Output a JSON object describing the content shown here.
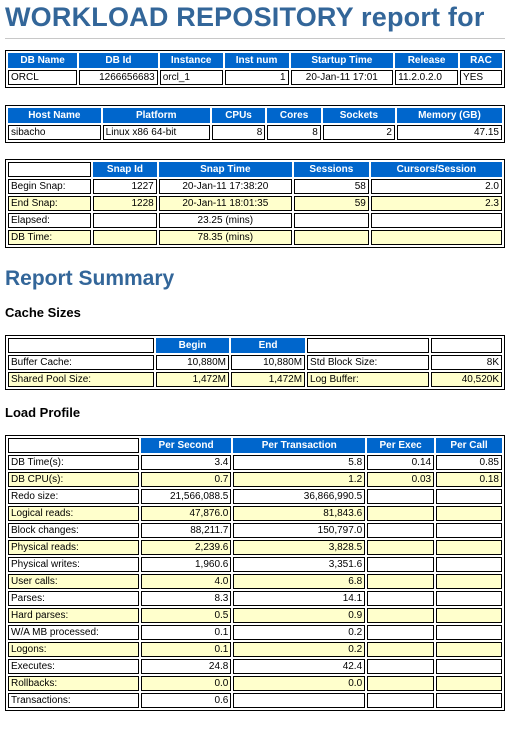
{
  "title": "WORKLOAD REPOSITORY report for",
  "db_table": {
    "headers": [
      "DB Name",
      "DB Id",
      "Instance",
      "Inst num",
      "Startup Time",
      "Release",
      "RAC"
    ],
    "row": [
      "ORCL",
      "1266656683",
      "orcl_1",
      "1",
      "20-Jan-11 17:01",
      "11.2.0.2.0",
      "YES"
    ]
  },
  "host_table": {
    "headers": [
      "Host Name",
      "Platform",
      "CPUs",
      "Cores",
      "Sockets",
      "Memory (GB)"
    ],
    "row": [
      "sibacho",
      "Linux x86 64-bit",
      "8",
      "8",
      "2",
      "47.15"
    ]
  },
  "snap_table": {
    "headers": [
      "",
      "Snap Id",
      "Snap Time",
      "Sessions",
      "Cursors/Session"
    ],
    "rows": [
      [
        "Begin Snap:",
        "1227",
        "20-Jan-11 17:38:20",
        "58",
        "2.0"
      ],
      [
        "End Snap:",
        "1228",
        "20-Jan-11 18:01:35",
        "59",
        "2.3"
      ],
      [
        "Elapsed:",
        "",
        "23.25 (mins)",
        "",
        ""
      ],
      [
        "DB Time:",
        "",
        "78.35 (mins)",
        "",
        ""
      ]
    ]
  },
  "report_summary_heading": "Report Summary",
  "cache_sizes_heading": "Cache Sizes",
  "cache_table": {
    "headers": [
      "",
      "Begin",
      "End",
      "",
      ""
    ],
    "rows": [
      [
        "Buffer Cache:",
        "10,880M",
        "10,880M",
        "Std Block Size:",
        "8K"
      ],
      [
        "Shared Pool Size:",
        "1,472M",
        "1,472M",
        "Log Buffer:",
        "40,520K"
      ]
    ]
  },
  "load_profile_heading": "Load Profile",
  "load_table": {
    "headers": [
      "",
      "Per Second",
      "Per Transaction",
      "Per Exec",
      "Per Call"
    ],
    "rows": [
      [
        "DB Time(s):",
        "3.4",
        "5.8",
        "0.14",
        "0.85"
      ],
      [
        "DB CPU(s):",
        "0.7",
        "1.2",
        "0.03",
        "0.18"
      ],
      [
        "Redo size:",
        "21,566,088.5",
        "36,866,990.5",
        "",
        ""
      ],
      [
        "Logical reads:",
        "47,876.0",
        "81,843.6",
        "",
        ""
      ],
      [
        "Block changes:",
        "88,211.7",
        "150,797.0",
        "",
        ""
      ],
      [
        "Physical reads:",
        "2,239.6",
        "3,828.5",
        "",
        ""
      ],
      [
        "Physical writes:",
        "1,960.6",
        "3,351.6",
        "",
        ""
      ],
      [
        "User calls:",
        "4.0",
        "6.8",
        "",
        ""
      ],
      [
        "Parses:",
        "8.3",
        "14.1",
        "",
        ""
      ],
      [
        "Hard parses:",
        "0.5",
        "0.9",
        "",
        ""
      ],
      [
        "W/A MB processed:",
        "0.1",
        "0.2",
        "",
        ""
      ],
      [
        "Logons:",
        "0.1",
        "0.2",
        "",
        ""
      ],
      [
        "Executes:",
        "24.8",
        "42.4",
        "",
        ""
      ],
      [
        "Rollbacks:",
        "0.0",
        "0.0",
        "",
        ""
      ],
      [
        "Transactions:",
        "0.6",
        "",
        "",
        ""
      ]
    ]
  }
}
